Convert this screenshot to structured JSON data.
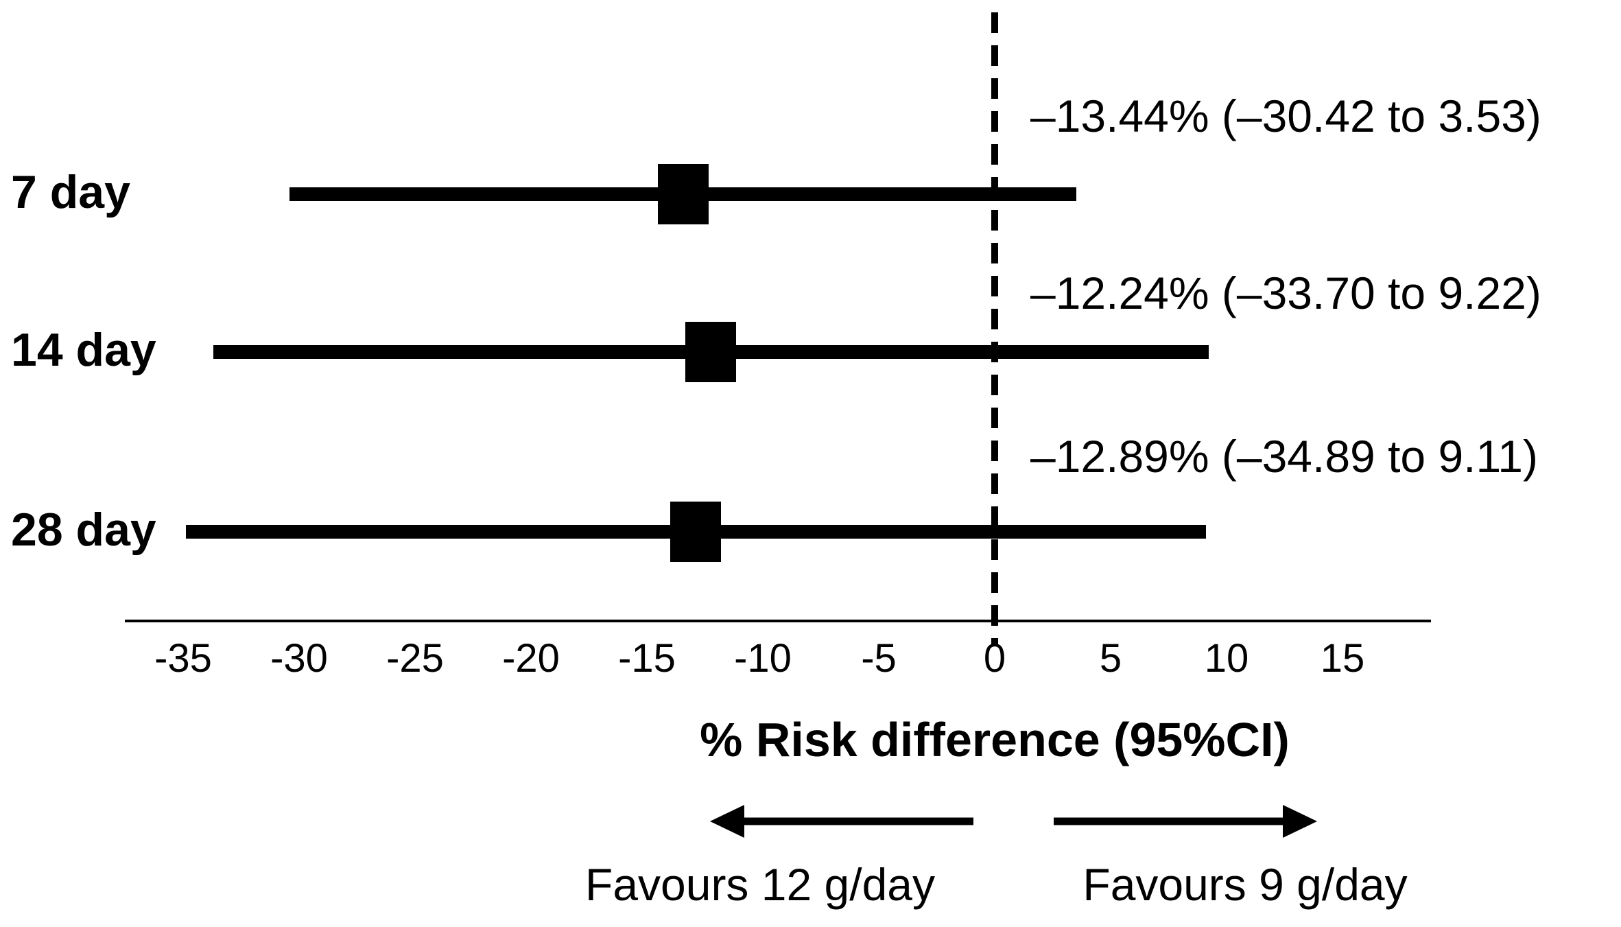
{
  "figure": {
    "background_color": "#ffffff",
    "ink_color": "#000000"
  },
  "chart_data": {
    "type": "forest",
    "title": "",
    "xlabel": "% Risk difference (95%CI)",
    "ylabel": "",
    "x_ticks": [
      -35,
      -30,
      -25,
      -20,
      -15,
      -10,
      -5,
      0,
      5,
      10,
      15
    ],
    "x_tick_labels": [
      "-35",
      "-30",
      "-25",
      "-20",
      "-15",
      "-10",
      "-5",
      "0",
      "5",
      "10",
      "15"
    ],
    "xlim": [
      -37.5,
      18.8
    ],
    "grid": false,
    "zero_reference_line": 0,
    "series": [
      {
        "label": "7 day",
        "estimate": -13.44,
        "ci_low": -30.42,
        "ci_high": 3.53,
        "annotation": "–13.44% (–30.42 to 3.53)"
      },
      {
        "label": "14 day",
        "estimate": -12.24,
        "ci_low": -33.7,
        "ci_high": 9.22,
        "annotation": "–12.24% (–33.70 to 9.22)"
      },
      {
        "label": "28 day",
        "estimate": -12.89,
        "ci_low": -34.89,
        "ci_high": 9.11,
        "annotation": "–12.89% (–34.89 to 9.11)"
      }
    ],
    "direction_labels": {
      "left": "Favours 12 g/day",
      "right": "Favours 9 g/day"
    }
  }
}
